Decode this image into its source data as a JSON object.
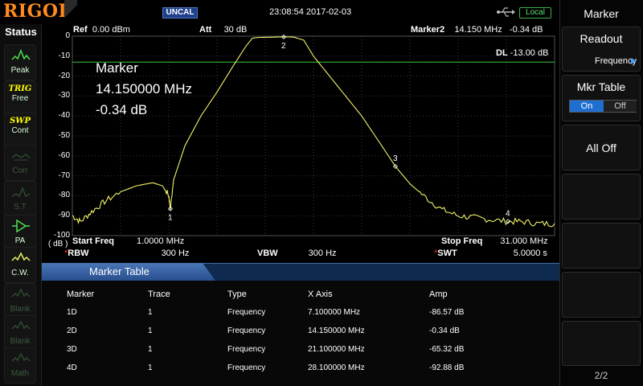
{
  "header": {
    "logo": "RIGOL",
    "uncal_badge": "UNCAL",
    "datetime": "23:08:54 2017-02-03",
    "local_badge": "Local",
    "usb_icon": "usb-icon"
  },
  "status": {
    "title": "Status",
    "buttons": [
      {
        "label": "Peak",
        "icon": "peak-icon",
        "active": true
      },
      {
        "label": "Free",
        "icon": "trig-icon",
        "active": true,
        "icon_text": "TRIG"
      },
      {
        "label": "Cont",
        "icon": "sweep-icon",
        "active": true,
        "icon_text": "SWP"
      },
      {
        "label": "Corr",
        "icon": "correction-icon",
        "active": false
      },
      {
        "label": "S.T",
        "icon": "signal-track-icon",
        "active": false
      },
      {
        "label": "PA",
        "icon": "preamp-icon",
        "active": true
      },
      {
        "label": "C.W.",
        "icon": "trace-mode-icon",
        "active": true
      },
      {
        "label": "Blank",
        "icon": "trace-icon",
        "active": false
      },
      {
        "label": "Blank",
        "icon": "trace-icon",
        "active": false
      },
      {
        "label": "Math",
        "icon": "math-icon",
        "active": false
      }
    ]
  },
  "plot": {
    "ref_label": "Ref",
    "ref_value": "0.00 dBm",
    "att_label": "Att",
    "att_value": "30 dB",
    "marker2_label": "Marker2",
    "marker2_freq": "14.150 MHz",
    "marker2_amp": "-0.34 dB",
    "dl_label": "DL",
    "dl_value": "-13.00 dB",
    "readout_line1": "Marker",
    "readout_line2": "14.150000 MHz",
    "readout_line3": "-0.34 dB",
    "unit": "( dB )",
    "y_ticks": [
      "0",
      "-10",
      "-20",
      "-30",
      "-40",
      "-50",
      "-60",
      "-70",
      "-80",
      "-90",
      "-100"
    ],
    "start_freq_label": "Start Freq",
    "start_freq_value": "1.0000 MHz",
    "stop_freq_label": "Stop Freq",
    "stop_freq_value": "31.000 MHz",
    "rbw_label": "RBW",
    "rbw_value": "300 Hz",
    "vbw_label": "VBW",
    "vbw_value": "300 Hz",
    "swt_label": "SWT",
    "swt_value": "5.0000 s",
    "trace_color": "#f2f26a",
    "display_line_color": "#3cc43c"
  },
  "chart_data": {
    "type": "line",
    "xlim": [
      1.0,
      31.0
    ],
    "ylim": [
      -100,
      0
    ],
    "display_line": -13.0,
    "x": [
      1.0,
      1.5,
      2.2,
      3.0,
      4.0,
      5.0,
      6.0,
      6.6,
      7.0,
      7.1,
      7.3,
      8.0,
      9.0,
      10.0,
      11.0,
      11.8,
      12.2,
      12.6,
      13.5,
      14.15,
      14.8,
      15.4,
      16.0,
      17.0,
      18.0,
      19.0,
      20.0,
      21.1,
      22.0,
      23.0,
      24.0,
      25.0,
      26.0,
      27.0,
      28.1,
      29.0,
      30.0,
      31.0
    ],
    "y": [
      -90,
      -93,
      -88,
      -83,
      -78,
      -75,
      -73.5,
      -75,
      -80,
      -86.57,
      -72,
      -55,
      -40,
      -28,
      -15,
      -5,
      -1,
      -0.6,
      -0.5,
      -0.34,
      -0.5,
      -2,
      -10,
      -20,
      -30,
      -40,
      -52,
      -65.32,
      -74,
      -81,
      -87,
      -90,
      -91,
      -92,
      -92.88,
      -93,
      -94,
      -94
    ],
    "markers": [
      {
        "id": "1",
        "x": 7.1,
        "y": -86.57
      },
      {
        "id": "2",
        "x": 14.15,
        "y": -0.34
      },
      {
        "id": "3",
        "x": 21.1,
        "y": -65.32
      },
      {
        "id": "4",
        "x": 28.1,
        "y": -92.88
      }
    ]
  },
  "marker_table": {
    "title": "Marker Table",
    "headers": [
      "Marker",
      "Trace",
      "Type",
      "X Axis",
      "Amp"
    ],
    "rows": [
      [
        "1D",
        "1",
        "Frequency",
        "7.100000 MHz",
        "-86.57 dB"
      ],
      [
        "2D",
        "1",
        "Frequency",
        "14.150000 MHz",
        "-0.34 dB"
      ],
      [
        "3D",
        "1",
        "Frequency",
        "21.100000 MHz",
        "-65.32 dB"
      ],
      [
        "4D",
        "1",
        "Frequency",
        "28.100000 MHz",
        "-92.88 dB"
      ]
    ]
  },
  "menu": {
    "title": "Marker",
    "readout_label": "Readout",
    "readout_value": "Frequency",
    "mkr_table_label": "Mkr Table",
    "on_label": "On",
    "off_label": "Off",
    "all_off_label": "All Off",
    "page": "2/2",
    "accent_color": "#1f6fd0"
  }
}
